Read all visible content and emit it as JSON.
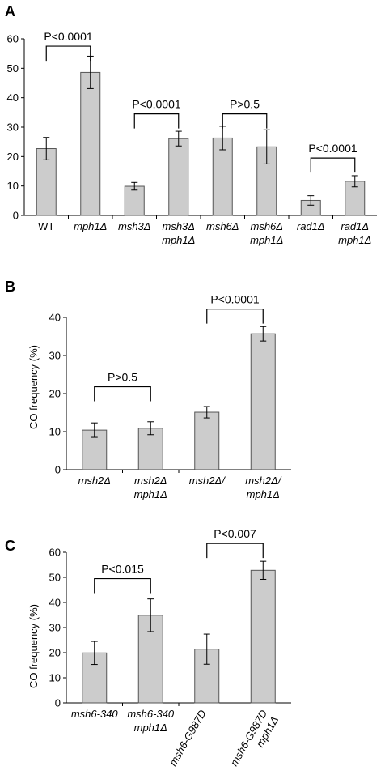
{
  "chart_data": [
    {
      "type": "bar",
      "panel": "A",
      "title": "",
      "xlabel": "",
      "ylabel": "",
      "ylim": [
        0,
        60
      ],
      "yticks": [
        "0",
        "10",
        "20",
        "30",
        "40",
        "50",
        "60"
      ],
      "grid": false,
      "categories": [
        [
          "WT"
        ],
        [
          "mph1Δ"
        ],
        [
          "msh3Δ"
        ],
        [
          "msh3Δ",
          "mph1Δ"
        ],
        [
          "msh6Δ"
        ],
        [
          "msh6Δ",
          "mph1Δ"
        ],
        [
          "rad1Δ"
        ],
        [
          "rad1Δ",
          "mph1Δ"
        ]
      ],
      "category_italic": [
        false,
        true,
        true,
        true,
        true,
        true,
        true,
        true
      ],
      "values": [
        22.7,
        48.6,
        9.9,
        26.1,
        26.3,
        23.3,
        5.1,
        11.6
      ],
      "errors": [
        3.8,
        5.5,
        1.3,
        2.5,
        4.0,
        5.8,
        1.6,
        1.9
      ],
      "annotations": [
        {
          "text": "P<0.0001",
          "from": 0,
          "to": 1,
          "y": 57.5
        },
        {
          "text": "P<0.0001",
          "from": 2,
          "to": 3,
          "y": 34.5
        },
        {
          "text": "P>0.5",
          "from": 4,
          "to": 5,
          "y": 34.5
        },
        {
          "text": "P<0.0001",
          "from": 6,
          "to": 7,
          "y": 19.5
        }
      ]
    },
    {
      "type": "bar",
      "panel": "B",
      "title": "",
      "xlabel": "",
      "ylabel": "CO frequency (%)",
      "ylim": [
        0,
        40
      ],
      "yticks": [
        "0",
        "10",
        "20",
        "30",
        "40"
      ],
      "grid": false,
      "categories": [
        [
          "msh2Δ"
        ],
        [
          "msh2Δ",
          "mph1Δ"
        ],
        [
          "msh2Δ/"
        ],
        [
          "msh2Δ/",
          "mph1Δ"
        ]
      ],
      "category_italic": [
        true,
        true,
        true,
        true
      ],
      "values": [
        10.4,
        10.9,
        15.1,
        35.7
      ],
      "errors": [
        1.9,
        1.7,
        1.5,
        1.9
      ],
      "annotations": [
        {
          "text": "P>0.5",
          "from": 0,
          "to": 1,
          "y": 21.8
        },
        {
          "text": "P<0.0001",
          "from": 2,
          "to": 3,
          "y": 42.2
        }
      ]
    },
    {
      "type": "bar",
      "panel": "C",
      "title": "",
      "xlabel": "",
      "ylabel": "CO frequency (%)",
      "ylim": [
        0,
        60
      ],
      "yticks": [
        "0",
        "10",
        "20",
        "30",
        "40",
        "50",
        "60"
      ],
      "grid": false,
      "categories": [
        [
          "msh6-340"
        ],
        [
          "msh6-340",
          "mph1Δ"
        ],
        [
          "msh6-G987D"
        ],
        [
          "msh6-G987D",
          "mph1Δ"
        ]
      ],
      "category_italic": [
        true,
        true,
        true,
        true
      ],
      "values": [
        19.9,
        34.9,
        21.4,
        52.8
      ],
      "errors": [
        4.6,
        6.5,
        6.0,
        3.6
      ],
      "annotations": [
        {
          "text": "P<0.015",
          "from": 0,
          "to": 1,
          "y": 49.5
        },
        {
          "text": "P<0.007",
          "from": 2,
          "to": 3,
          "y": 63.5
        }
      ]
    }
  ]
}
